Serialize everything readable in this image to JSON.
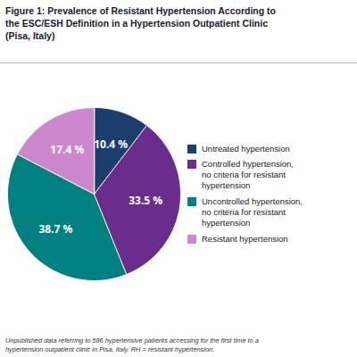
{
  "chart_data": {
    "type": "pie",
    "title": "Figure 1: Prevalence of Resistant Hypertension According to\nthe ESC/ESH Definition in a Hypertension Outpatient Clinic\n(Pisa, Italy)",
    "categories": [
      "Untreated hypertension",
      "Controlled hypertension,\nno criteria for resistant\nhypertension",
      "Uncontrolled hypertension,\nno criteria for resistant\nhypertension",
      "Resistant hypertension"
    ],
    "values": [
      10.4,
      33.5,
      38.7,
      17.4
    ],
    "value_labels": [
      "10.4 %",
      "33.5 %",
      "38.7 %",
      "17.4 %"
    ],
    "colors": [
      "#1c3d6e",
      "#6b2d8b",
      "#008080",
      "#cc88cc"
    ],
    "data_labels": true,
    "legend": "right",
    "annotations": [
      "Unpublished data referring to 586 hypertensive patients accessing for the first time to a\nhypertension outpatient clinic in Pisa, Italy. RH = resistant hypertension."
    ]
  }
}
